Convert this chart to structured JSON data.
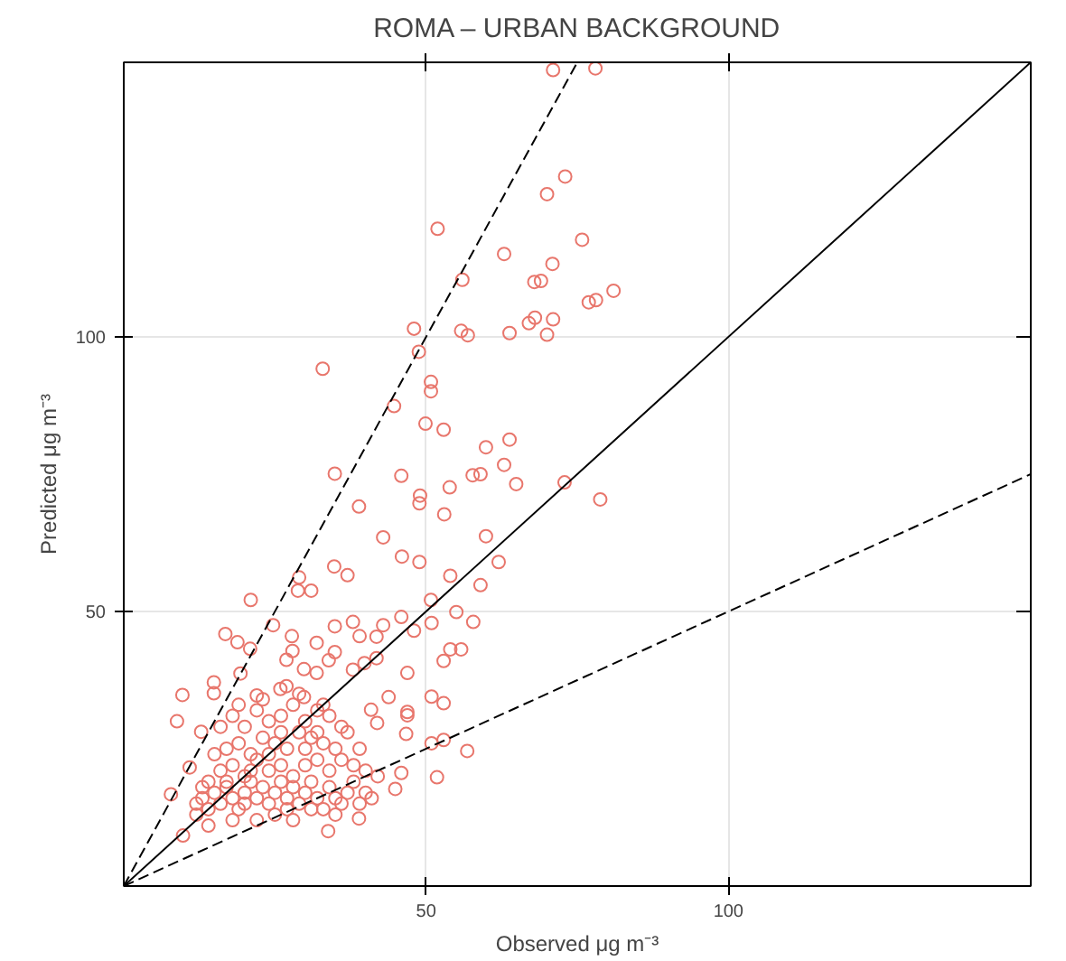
{
  "chart_data": {
    "type": "scatter",
    "title": "ROMA – URBAN BACKGROUND",
    "xlabel": "Observed μg m⁻³",
    "ylabel": "Predicted μg m⁻³",
    "xlim": [
      0,
      150
    ],
    "ylim": [
      0,
      150
    ],
    "xticks": [
      50,
      100
    ],
    "yticks": [
      50,
      100
    ],
    "grid": true,
    "series": [
      {
        "color": "#e8766c",
        "marker": "circle",
        "x": [
          71,
          78,
          73,
          70,
          51.9,
          75.8,
          62.9,
          70.9,
          56,
          67.9,
          69,
          81,
          76.9,
          78.1,
          67,
          68,
          71,
          48,
          55.8,
          56.9,
          63.8,
          70,
          48.8,
          32.9,
          50.8,
          50.8,
          44.7,
          49.9,
          52.9,
          63.8,
          59.9,
          62.9,
          34.9,
          45.9,
          57.7,
          59,
          64.9,
          72.9,
          53.9,
          49,
          48.9,
          78.8,
          38.9,
          53,
          59.9,
          42.9,
          46,
          48.9,
          62,
          34.8,
          37,
          54,
          29,
          28.8,
          31,
          59,
          21,
          50.8,
          55,
          45.9,
          24.7,
          50.9,
          57.8,
          34.9,
          37.9,
          42.9,
          16.8,
          48,
          27.8,
          31.9,
          18.8,
          20.9,
          27.9,
          34.9,
          39,
          41.8,
          54,
          55.8,
          52.9,
          33.9,
          26.9,
          39.8,
          41.8,
          29.8,
          31.9,
          37.9,
          19.3,
          14.9,
          46.9,
          25.9,
          26.9,
          9.7,
          14.9,
          22,
          29.8,
          43.8,
          50.9,
          52.9,
          40.9,
          46.9,
          46.9,
          8.8,
          12.8,
          41.9,
          46.7,
          50.9,
          52.9,
          56.8,
          10.9,
          45.9,
          51.8,
          44.9,
          7.8,
          9.8,
          33.8,
          38.9,
          12,
          13,
          14,
          15,
          16,
          17,
          18,
          19,
          20,
          21,
          22,
          23,
          24,
          25,
          26,
          27,
          28,
          29,
          30,
          31,
          32,
          33,
          34,
          35,
          36,
          37,
          38,
          39,
          40,
          41,
          12,
          14,
          16,
          18,
          20,
          22,
          24,
          26,
          28,
          30,
          32,
          34,
          36,
          38,
          40,
          42,
          15,
          17,
          19,
          21,
          23,
          25,
          27,
          29,
          31,
          33,
          35,
          37,
          39,
          16,
          18,
          20,
          22,
          24,
          26,
          28,
          30,
          32,
          34,
          36,
          22,
          25,
          28,
          31,
          18,
          14,
          35,
          27,
          20,
          24,
          30,
          33,
          29,
          23,
          19,
          32,
          26,
          21,
          17,
          13
        ],
        "values": [
          148.6,
          148.9,
          129.2,
          126,
          119.7,
          117.7,
          115.1,
          113.3,
          110.4,
          110,
          110.2,
          108.4,
          106.3,
          106.7,
          102.5,
          103.5,
          103.2,
          101.5,
          101.1,
          100.3,
          100.7,
          100.4,
          97.3,
          94.2,
          91.8,
          90.1,
          87.4,
          84.2,
          83.1,
          81.3,
          79.9,
          76.7,
          75.1,
          74.7,
          74.8,
          75,
          73.2,
          73.5,
          72.6,
          71.1,
          69.7,
          70.4,
          69.1,
          67.7,
          63.7,
          63.5,
          60,
          59,
          59,
          58.2,
          56.6,
          56.5,
          56.2,
          53.8,
          53.8,
          54.8,
          52.1,
          52.1,
          49.9,
          49,
          47.5,
          47.9,
          48.1,
          47.3,
          48.1,
          47.5,
          45.9,
          46.5,
          45.5,
          44.3,
          44.4,
          43.2,
          42.8,
          42.6,
          45.5,
          45.4,
          43.1,
          43.1,
          41,
          41.1,
          41.2,
          40.6,
          41.5,
          39.5,
          38.8,
          39.4,
          38.7,
          37.1,
          38.8,
          35.9,
          36.4,
          34.8,
          35.1,
          34.7,
          34.4,
          34.4,
          34.5,
          33.3,
          32.1,
          31.7,
          31.1,
          30,
          28.1,
          29.7,
          27.7,
          26,
          26.6,
          24.6,
          21.6,
          20.6,
          19.8,
          17.7,
          16.7,
          9.2,
          10,
          12.3,
          15,
          16,
          14,
          17,
          15,
          18,
          16,
          14,
          17,
          19,
          16,
          18,
          15,
          17,
          19,
          16,
          18,
          15,
          17,
          19,
          16,
          14,
          18,
          16,
          15,
          17,
          19,
          15,
          17,
          16,
          13,
          19,
          21,
          22,
          20,
          23,
          21,
          22,
          20,
          22,
          23,
          21,
          23,
          22,
          21,
          20,
          24,
          25,
          26,
          24,
          27,
          26,
          25,
          28,
          27,
          26,
          25,
          28,
          25,
          29,
          31,
          29,
          32,
          30,
          31,
          33,
          30,
          32,
          31,
          29,
          12,
          13,
          12,
          14,
          12,
          11,
          13,
          14,
          15,
          24,
          25,
          33,
          35,
          34,
          33,
          28,
          28,
          21,
          19,
          18
        ]
      },
      {
        "type": "line",
        "color": "#000000",
        "line_style": "dashed",
        "x": [
          0,
          75
        ],
        "values": [
          0,
          150
        ]
      },
      {
        "type": "line",
        "color": "#000000",
        "line_style": "solid",
        "x": [
          0,
          150
        ],
        "values": [
          0,
          150
        ]
      },
      {
        "type": "line",
        "color": "#000000",
        "line_style": "dashed",
        "x": [
          0,
          150
        ],
        "values": [
          0,
          75
        ]
      }
    ]
  }
}
